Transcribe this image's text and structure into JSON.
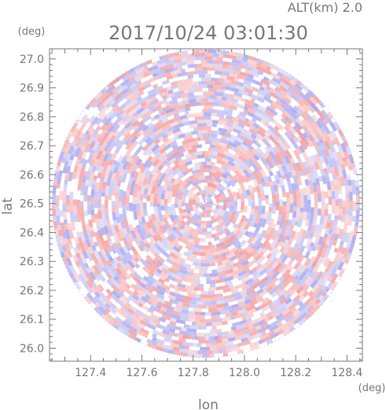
{
  "header": {
    "altitude_label": "ALT(km) 2.0",
    "timestamp": "2017/10/24 03:01:30"
  },
  "chart_data": {
    "type": "heatmap",
    "title": "2017/10/24 03:01:30",
    "subtitle": "ALT(km) 2.0",
    "xlabel": "lon",
    "ylabel": "lat",
    "x_unit": "(deg)",
    "y_unit": "(deg)",
    "xlim": [
      127.24,
      128.46
    ],
    "ylim": [
      25.955,
      27.035
    ],
    "x_ticks": [
      127.4,
      127.6,
      127.8,
      128.0,
      128.2,
      128.4
    ],
    "y_ticks": [
      26.0,
      26.1,
      26.2,
      26.3,
      26.4,
      26.5,
      26.6,
      26.7,
      26.8,
      26.9,
      27.0
    ],
    "x_tick_labels": [
      "127.4",
      "127.6",
      "127.8",
      "128.0",
      "128.2",
      "128.4"
    ],
    "y_tick_labels": [
      "26.0",
      "26.1",
      "26.2",
      "26.3",
      "26.4",
      "26.5",
      "26.6",
      "26.7",
      "26.8",
      "26.9",
      "27.0"
    ],
    "center": {
      "lon": 127.85,
      "lat": 26.5
    },
    "range_deg": {
      "lon": 0.6,
      "lat": 0.54
    },
    "grid": false,
    "colors": {
      "positive": "#f4a0a0",
      "negative": "#a8a8f0",
      "axis": "#777777",
      "background": "#ffffff"
    }
  }
}
